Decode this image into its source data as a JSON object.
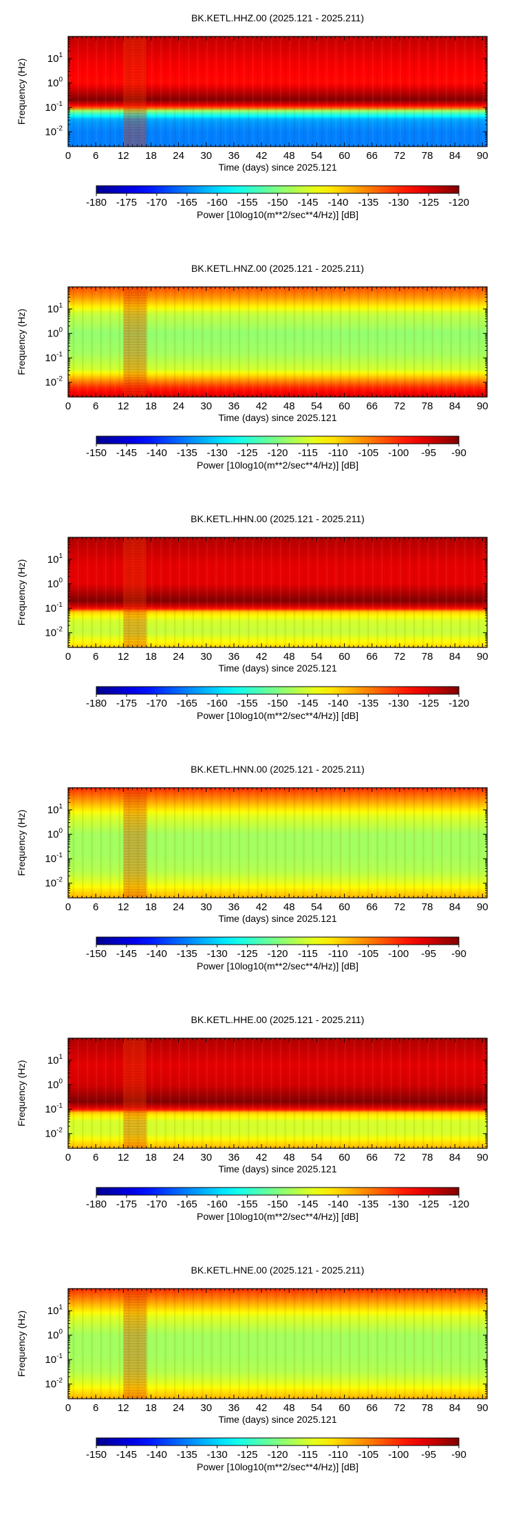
{
  "chart_data": [
    {
      "type": "heatmap",
      "title": "BK.KETL.HHZ.00 (2025.121 - 2025.211)",
      "xlabel": "Time (days) since 2025.121",
      "ylabel": "Frequency (Hz)",
      "x_ticks": [
        "0",
        "6",
        "12",
        "18",
        "24",
        "30",
        "36",
        "42",
        "48",
        "54",
        "60",
        "66",
        "72",
        "78",
        "84",
        "90"
      ],
      "xlim": [
        0,
        91
      ],
      "y_scale": "log",
      "y_ticks": [
        "10-2",
        "10-1",
        "100",
        "101"
      ],
      "y_tick_values": [
        -2,
        -1,
        0,
        1
      ],
      "ylim_log10": [
        -2.6,
        1.9
      ],
      "colorbar": {
        "label": "Power [10log10(m**2/sec**4/Hz)] [dB]",
        "min": -180,
        "max": -120,
        "ticks": [
          "-180",
          "-175",
          "-170",
          "-165",
          "-160",
          "-155",
          "-150",
          "-145",
          "-140",
          "-135",
          "-130",
          "-125",
          "-120"
        ]
      },
      "profile": [
        {
          "log10_f": -2.6,
          "power": -165
        },
        {
          "log10_f": -2.0,
          "power": -165
        },
        {
          "log10_f": -1.5,
          "power": -163
        },
        {
          "log10_f": -1.15,
          "power": -150
        },
        {
          "log10_f": -1.0,
          "power": -130
        },
        {
          "log10_f": -0.7,
          "power": -120
        },
        {
          "log10_f": 0.0,
          "power": -128
        },
        {
          "log10_f": 0.8,
          "power": -127
        },
        {
          "log10_f": 1.9,
          "power": -124
        }
      ],
      "bright_band_days": [
        12,
        17
      ]
    },
    {
      "type": "heatmap",
      "title": "BK.KETL.HNZ.00 (2025.121 - 2025.211)",
      "xlabel": "Time (days) since 2025.121",
      "ylabel": "Frequency (Hz)",
      "x_ticks": [
        "0",
        "6",
        "12",
        "18",
        "24",
        "30",
        "36",
        "42",
        "48",
        "54",
        "60",
        "66",
        "72",
        "78",
        "84",
        "90"
      ],
      "xlim": [
        0,
        91
      ],
      "y_scale": "log",
      "y_ticks": [
        "10-2",
        "10-1",
        "100",
        "101"
      ],
      "y_tick_values": [
        -2,
        -1,
        0,
        1
      ],
      "ylim_log10": [
        -2.6,
        1.9
      ],
      "colorbar": {
        "label": "Power [10log10(m**2/sec**4/Hz)] [dB]",
        "min": -150,
        "max": -90,
        "ticks": [
          "-150",
          "-145",
          "-140",
          "-135",
          "-130",
          "-125",
          "-120",
          "-115",
          "-110",
          "-105",
          "-100",
          "-95",
          "-90"
        ]
      },
      "profile": [
        {
          "log10_f": -2.6,
          "power": -95
        },
        {
          "log10_f": -2.2,
          "power": -100
        },
        {
          "log10_f": -1.5,
          "power": -115
        },
        {
          "log10_f": -0.8,
          "power": -118
        },
        {
          "log10_f": 0.0,
          "power": -119
        },
        {
          "log10_f": 0.8,
          "power": -116
        },
        {
          "log10_f": 1.5,
          "power": -106
        },
        {
          "log10_f": 1.9,
          "power": -102
        }
      ],
      "bright_band_days": [
        12,
        17
      ]
    },
    {
      "type": "heatmap",
      "title": "BK.KETL.HHN.00 (2025.121 - 2025.211)",
      "xlabel": "Time (days) since 2025.121",
      "ylabel": "Frequency (Hz)",
      "x_ticks": [
        "0",
        "6",
        "12",
        "18",
        "24",
        "30",
        "36",
        "42",
        "48",
        "54",
        "60",
        "66",
        "72",
        "78",
        "84",
        "90"
      ],
      "xlim": [
        0,
        91
      ],
      "y_scale": "log",
      "y_ticks": [
        "10-2",
        "10-1",
        "100",
        "101"
      ],
      "y_tick_values": [
        -2,
        -1,
        0,
        1
      ],
      "ylim_log10": [
        -2.6,
        1.9
      ],
      "colorbar": {
        "label": "Power [10log10(m**2/sec**4/Hz)] [dB]",
        "min": -180,
        "max": -120,
        "ticks": [
          "-180",
          "-175",
          "-170",
          "-165",
          "-160",
          "-155",
          "-150",
          "-145",
          "-140",
          "-135",
          "-130",
          "-125",
          "-120"
        ]
      },
      "profile": [
        {
          "log10_f": -2.6,
          "power": -140
        },
        {
          "log10_f": -2.0,
          "power": -146
        },
        {
          "log10_f": -1.5,
          "power": -145
        },
        {
          "log10_f": -1.15,
          "power": -140
        },
        {
          "log10_f": -1.0,
          "power": -127
        },
        {
          "log10_f": -0.7,
          "power": -120
        },
        {
          "log10_f": 0.0,
          "power": -126
        },
        {
          "log10_f": 0.8,
          "power": -126
        },
        {
          "log10_f": 1.9,
          "power": -123
        }
      ],
      "bright_band_days": [
        12,
        17
      ]
    },
    {
      "type": "heatmap",
      "title": "BK.KETL.HNN.00 (2025.121 - 2025.211)",
      "xlabel": "Time (days) since 2025.121",
      "ylabel": "Frequency (Hz)",
      "x_ticks": [
        "0",
        "6",
        "12",
        "18",
        "24",
        "30",
        "36",
        "42",
        "48",
        "54",
        "60",
        "66",
        "72",
        "78",
        "84",
        "90"
      ],
      "xlim": [
        0,
        91
      ],
      "y_scale": "log",
      "y_ticks": [
        "10-2",
        "10-1",
        "100",
        "101"
      ],
      "y_tick_values": [
        -2,
        -1,
        0,
        1
      ],
      "ylim_log10": [
        -2.6,
        1.9
      ],
      "colorbar": {
        "label": "Power [10log10(m**2/sec**4/Hz)] [dB]",
        "min": -150,
        "max": -90,
        "ticks": [
          "-150",
          "-145",
          "-140",
          "-135",
          "-130",
          "-125",
          "-120",
          "-115",
          "-110",
          "-105",
          "-100",
          "-95",
          "-90"
        ]
      },
      "profile": [
        {
          "log10_f": -2.6,
          "power": -108
        },
        {
          "log10_f": -2.0,
          "power": -114
        },
        {
          "log10_f": -1.5,
          "power": -117
        },
        {
          "log10_f": -0.8,
          "power": -118
        },
        {
          "log10_f": 0.0,
          "power": -118
        },
        {
          "log10_f": 0.8,
          "power": -114
        },
        {
          "log10_f": 1.5,
          "power": -105
        },
        {
          "log10_f": 1.9,
          "power": -100
        }
      ],
      "bright_band_days": [
        12,
        17
      ]
    },
    {
      "type": "heatmap",
      "title": "BK.KETL.HHE.00 (2025.121 - 2025.211)",
      "xlabel": "Time (days) since 2025.121",
      "ylabel": "Frequency (Hz)",
      "x_ticks": [
        "0",
        "6",
        "12",
        "18",
        "24",
        "30",
        "36",
        "42",
        "48",
        "54",
        "60",
        "66",
        "72",
        "78",
        "84",
        "90"
      ],
      "xlim": [
        0,
        91
      ],
      "y_scale": "log",
      "y_ticks": [
        "10-2",
        "10-1",
        "100",
        "101"
      ],
      "y_tick_values": [
        -2,
        -1,
        0,
        1
      ],
      "ylim_log10": [
        -2.6,
        1.9
      ],
      "colorbar": {
        "label": "Power [10log10(m**2/sec**4/Hz)] [dB]",
        "min": -180,
        "max": -120,
        "ticks": [
          "-180",
          "-175",
          "-170",
          "-165",
          "-160",
          "-155",
          "-150",
          "-145",
          "-140",
          "-135",
          "-130",
          "-125",
          "-120"
        ]
      },
      "profile": [
        {
          "log10_f": -2.6,
          "power": -138
        },
        {
          "log10_f": -2.0,
          "power": -145
        },
        {
          "log10_f": -1.5,
          "power": -145
        },
        {
          "log10_f": -1.15,
          "power": -140
        },
        {
          "log10_f": -1.0,
          "power": -127
        },
        {
          "log10_f": -0.7,
          "power": -120
        },
        {
          "log10_f": 0.0,
          "power": -125
        },
        {
          "log10_f": 0.8,
          "power": -126
        },
        {
          "log10_f": 1.9,
          "power": -123
        }
      ],
      "bright_band_days": [
        12,
        17
      ]
    },
    {
      "type": "heatmap",
      "title": "BK.KETL.HNE.00 (2025.121 - 2025.211)",
      "xlabel": "Time (days) since 2025.121",
      "ylabel": "Frequency (Hz)",
      "x_ticks": [
        "0",
        "6",
        "12",
        "18",
        "24",
        "30",
        "36",
        "42",
        "48",
        "54",
        "60",
        "66",
        "72",
        "78",
        "84",
        "90"
      ],
      "xlim": [
        0,
        91
      ],
      "y_scale": "log",
      "y_ticks": [
        "10-2",
        "10-1",
        "100",
        "101"
      ],
      "y_tick_values": [
        -2,
        -1,
        0,
        1
      ],
      "ylim_log10": [
        -2.6,
        1.9
      ],
      "colorbar": {
        "label": "Power [10log10(m**2/sec**4/Hz)] [dB]",
        "min": -150,
        "max": -90,
        "ticks": [
          "-150",
          "-145",
          "-140",
          "-135",
          "-130",
          "-125",
          "-120",
          "-115",
          "-110",
          "-105",
          "-100",
          "-95",
          "-90"
        ]
      },
      "profile": [
        {
          "log10_f": -2.6,
          "power": -108
        },
        {
          "log10_f": -2.0,
          "power": -114
        },
        {
          "log10_f": -1.5,
          "power": -117
        },
        {
          "log10_f": -0.8,
          "power": -118
        },
        {
          "log10_f": 0.0,
          "power": -118
        },
        {
          "log10_f": 0.8,
          "power": -114
        },
        {
          "log10_f": 1.5,
          "power": -105
        },
        {
          "log10_f": 1.9,
          "power": -100
        }
      ],
      "bright_band_days": [
        12,
        17
      ]
    }
  ]
}
